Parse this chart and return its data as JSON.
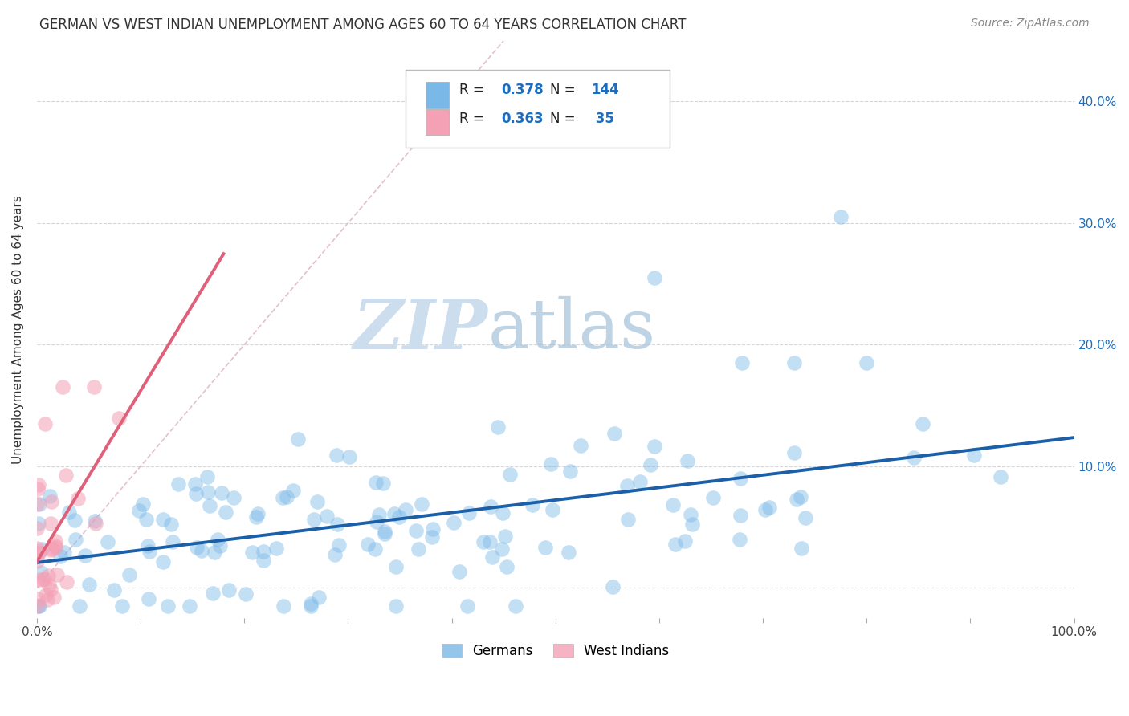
{
  "title": "GERMAN VS WEST INDIAN UNEMPLOYMENT AMONG AGES 60 TO 64 YEARS CORRELATION CHART",
  "source": "Source: ZipAtlas.com",
  "ylabel": "Unemployment Among Ages 60 to 64 years",
  "xlim": [
    0,
    1.0
  ],
  "ylim": [
    -0.025,
    0.45
  ],
  "xticks": [
    0.0,
    0.1,
    0.2,
    0.3,
    0.4,
    0.5,
    0.6,
    0.7,
    0.8,
    0.9,
    1.0
  ],
  "xticklabels": [
    "0.0%",
    "",
    "",
    "",
    "",
    "",
    "",
    "",
    "",
    "",
    "100.0%"
  ],
  "yticks": [
    0.0,
    0.1,
    0.2,
    0.3,
    0.4
  ],
  "yticklabels": [
    "",
    "10.0%",
    "20.0%",
    "30.0%",
    "40.0%"
  ],
  "german_color": "#7ab8e8",
  "west_indian_color": "#f4a0b5",
  "german_line_color": "#1a5fa8",
  "west_indian_line_color": "#e0607a",
  "diagonal_color": "#e0b8cc",
  "background_color": "#ffffff",
  "grid_color": "#cccccc",
  "N_german": 144,
  "N_wi": 35
}
